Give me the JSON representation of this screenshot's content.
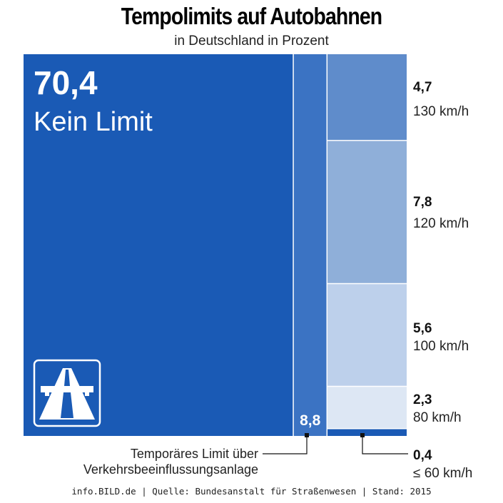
{
  "title": "Tempolimits auf Autobahnen",
  "subtitle": "in Deutschland in Prozent",
  "footer": "info.BILD.de | Quelle: Bundesanstalt für Straßenwesen | Stand: 2015",
  "chart_data": {
    "type": "treemap",
    "series": [
      {
        "value": 70.4,
        "value_label": "70,4",
        "label": "Kein Limit",
        "color": "#1a5ab5"
      },
      {
        "value": 8.8,
        "value_label": "8,8",
        "label": "Temporäres Limit über",
        "label2": "Verkehrsbeeinflussungsanlage",
        "color": "#3b73c3"
      },
      {
        "value": 4.7,
        "value_label": "4,7",
        "label": "130 km/h",
        "color": "#5f8ccb"
      },
      {
        "value": 7.8,
        "value_label": "7,8",
        "label": "120 km/h",
        "color": "#8fafd9"
      },
      {
        "value": 5.6,
        "value_label": "5,6",
        "label": "100 km/h",
        "color": "#bdd0eb"
      },
      {
        "value": 2.3,
        "value_label": "2,3",
        "label": "80 km/h",
        "color": "#dde7f4"
      },
      {
        "value": 0.4,
        "value_label": "0,4",
        "label": "≤ 60 km/h",
        "color": "#1a5ab5"
      }
    ]
  }
}
